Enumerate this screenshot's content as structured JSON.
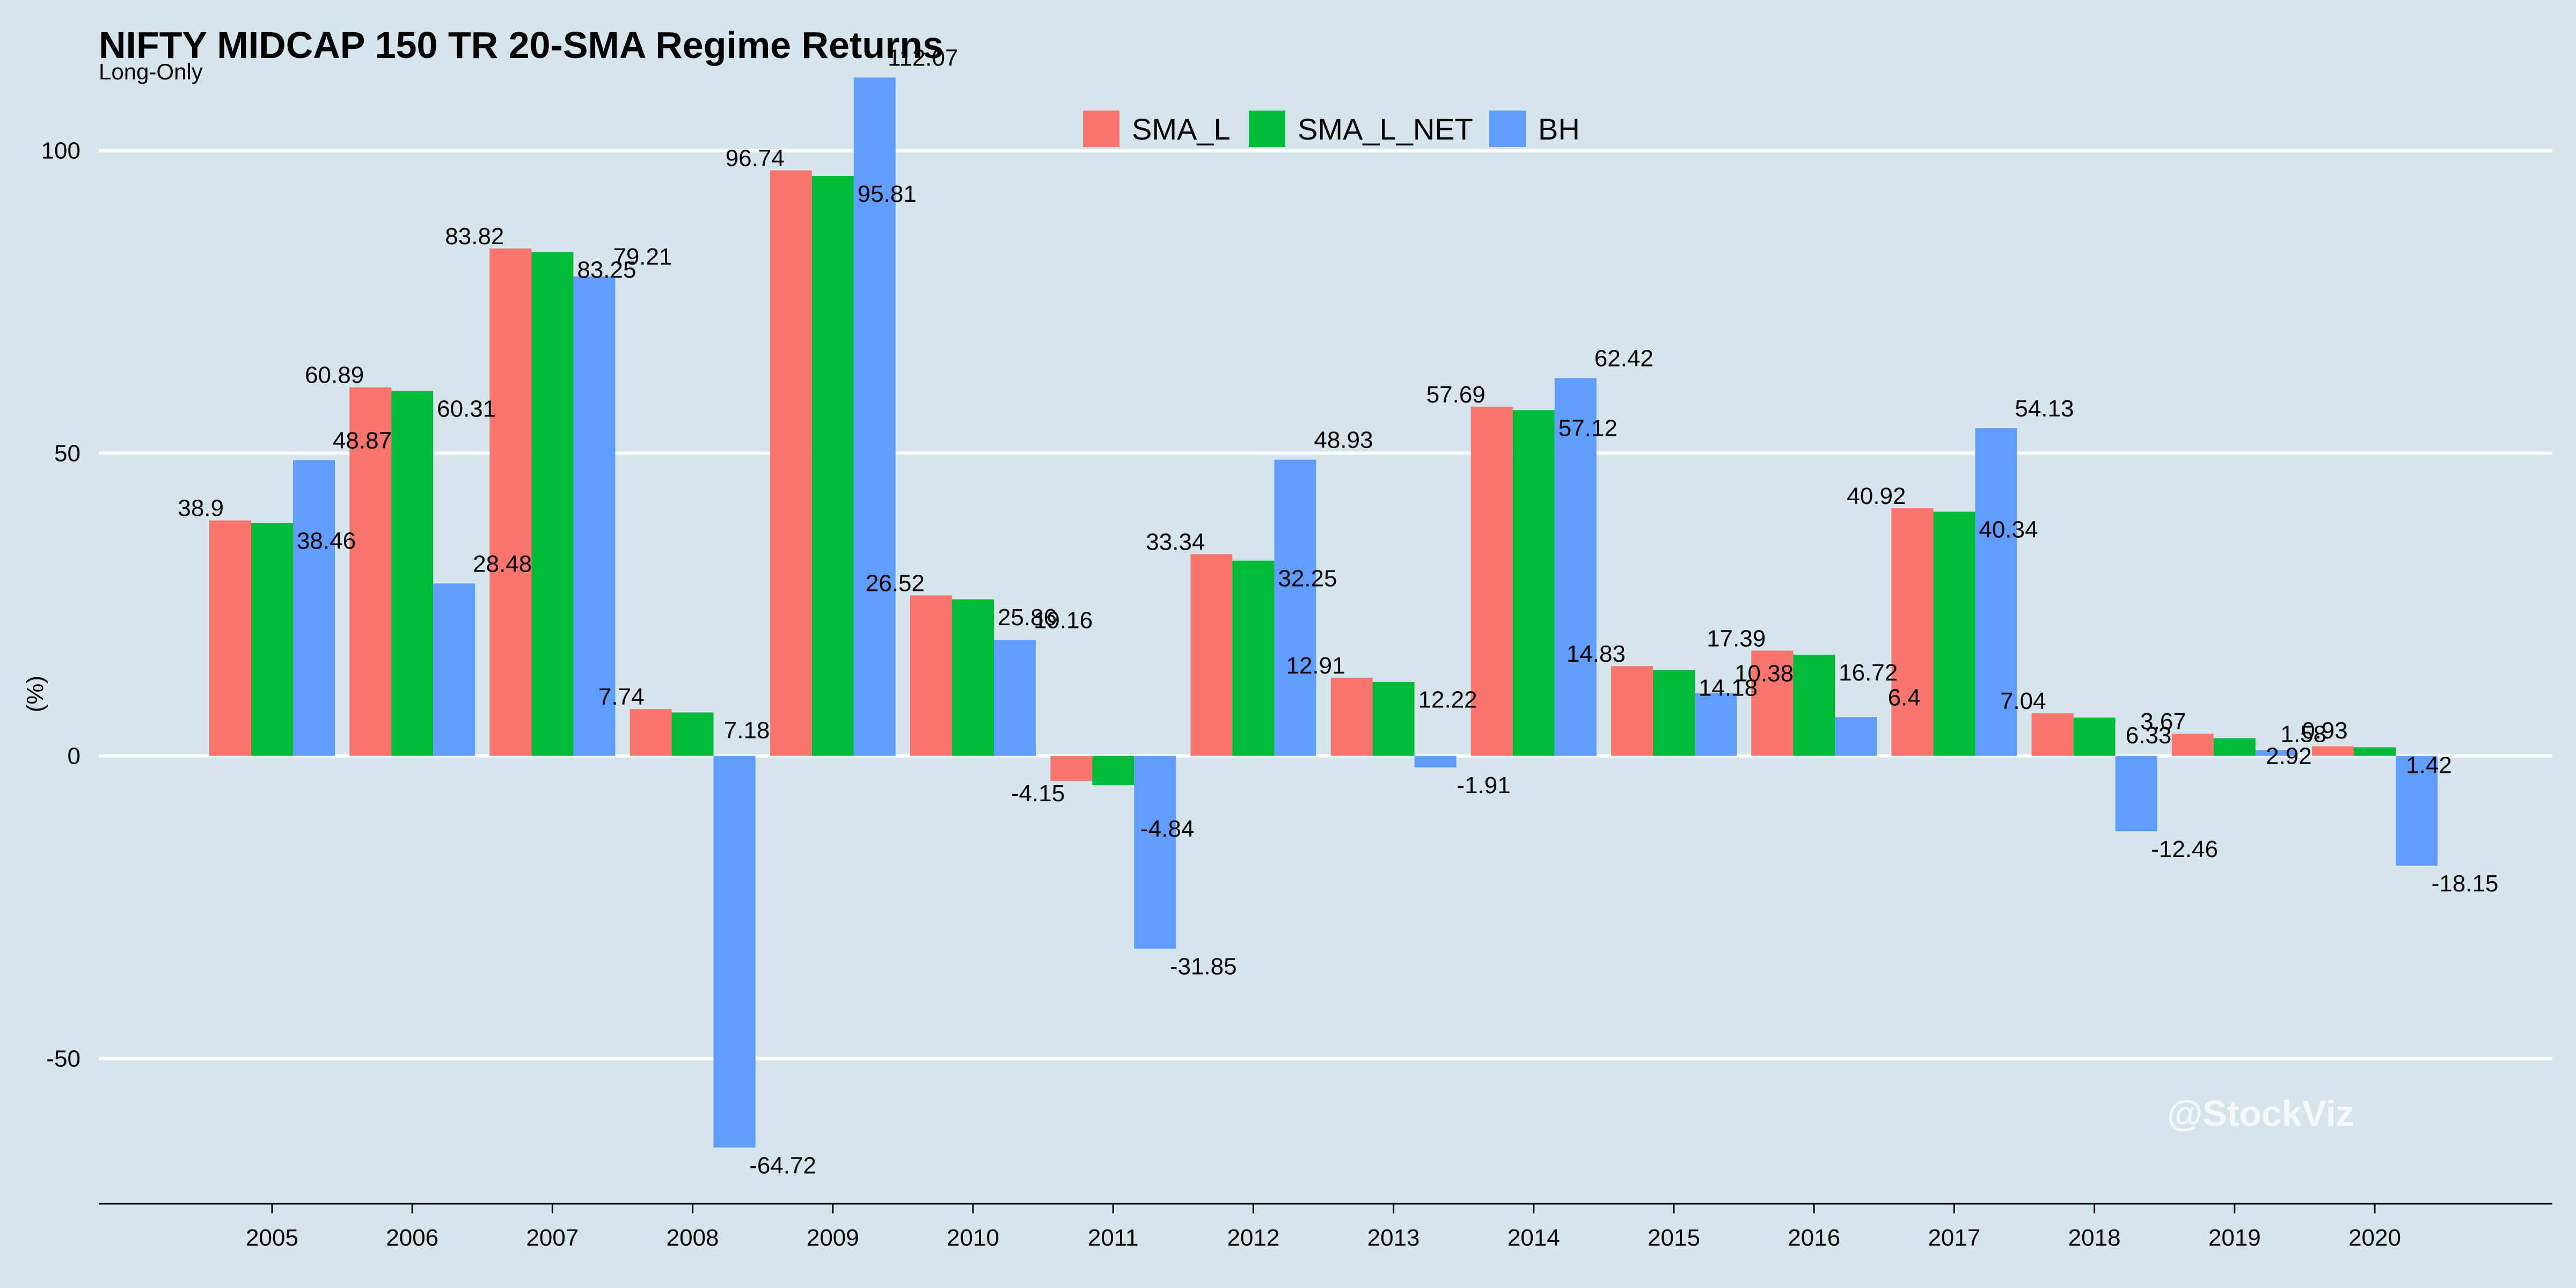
{
  "chart_data": {
    "type": "bar",
    "title": "NIFTY MIDCAP 150 TR 20-SMA Regime Returns",
    "subtitle": "Long-Only",
    "xlabel": "",
    "ylabel": "(%)",
    "ylim": [
      -74,
      124
    ],
    "yticks": [
      -50,
      0,
      50,
      100
    ],
    "grid": true,
    "legend_position": "top-center",
    "watermark": "@StockViz",
    "categories": [
      "2005",
      "2006",
      "2007",
      "2008",
      "2009",
      "2010",
      "2011",
      "2012",
      "2013",
      "2014",
      "2015",
      "2016",
      "2017",
      "2018",
      "2019",
      "2020"
    ],
    "series": [
      {
        "name": "SMA_L",
        "color": "#f8766d",
        "values": [
          38.9,
          60.89,
          83.82,
          7.74,
          96.74,
          26.52,
          -4.15,
          33.34,
          12.91,
          57.69,
          14.83,
          17.39,
          40.92,
          7.04,
          3.67,
          1.58
        ]
      },
      {
        "name": "SMA_L_NET",
        "color": "#00ba38",
        "values": [
          38.46,
          60.31,
          83.25,
          7.18,
          95.81,
          25.86,
          -4.84,
          32.25,
          12.22,
          57.12,
          14.18,
          16.72,
          40.34,
          6.33,
          2.92,
          1.42
        ]
      },
      {
        "name": "BH",
        "color": "#619cff",
        "values": [
          48.87,
          28.48,
          79.21,
          -64.72,
          112.07,
          19.16,
          -31.85,
          48.93,
          -1.91,
          62.42,
          10.38,
          6.4,
          54.13,
          -12.46,
          0.93,
          -18.15
        ]
      }
    ]
  }
}
